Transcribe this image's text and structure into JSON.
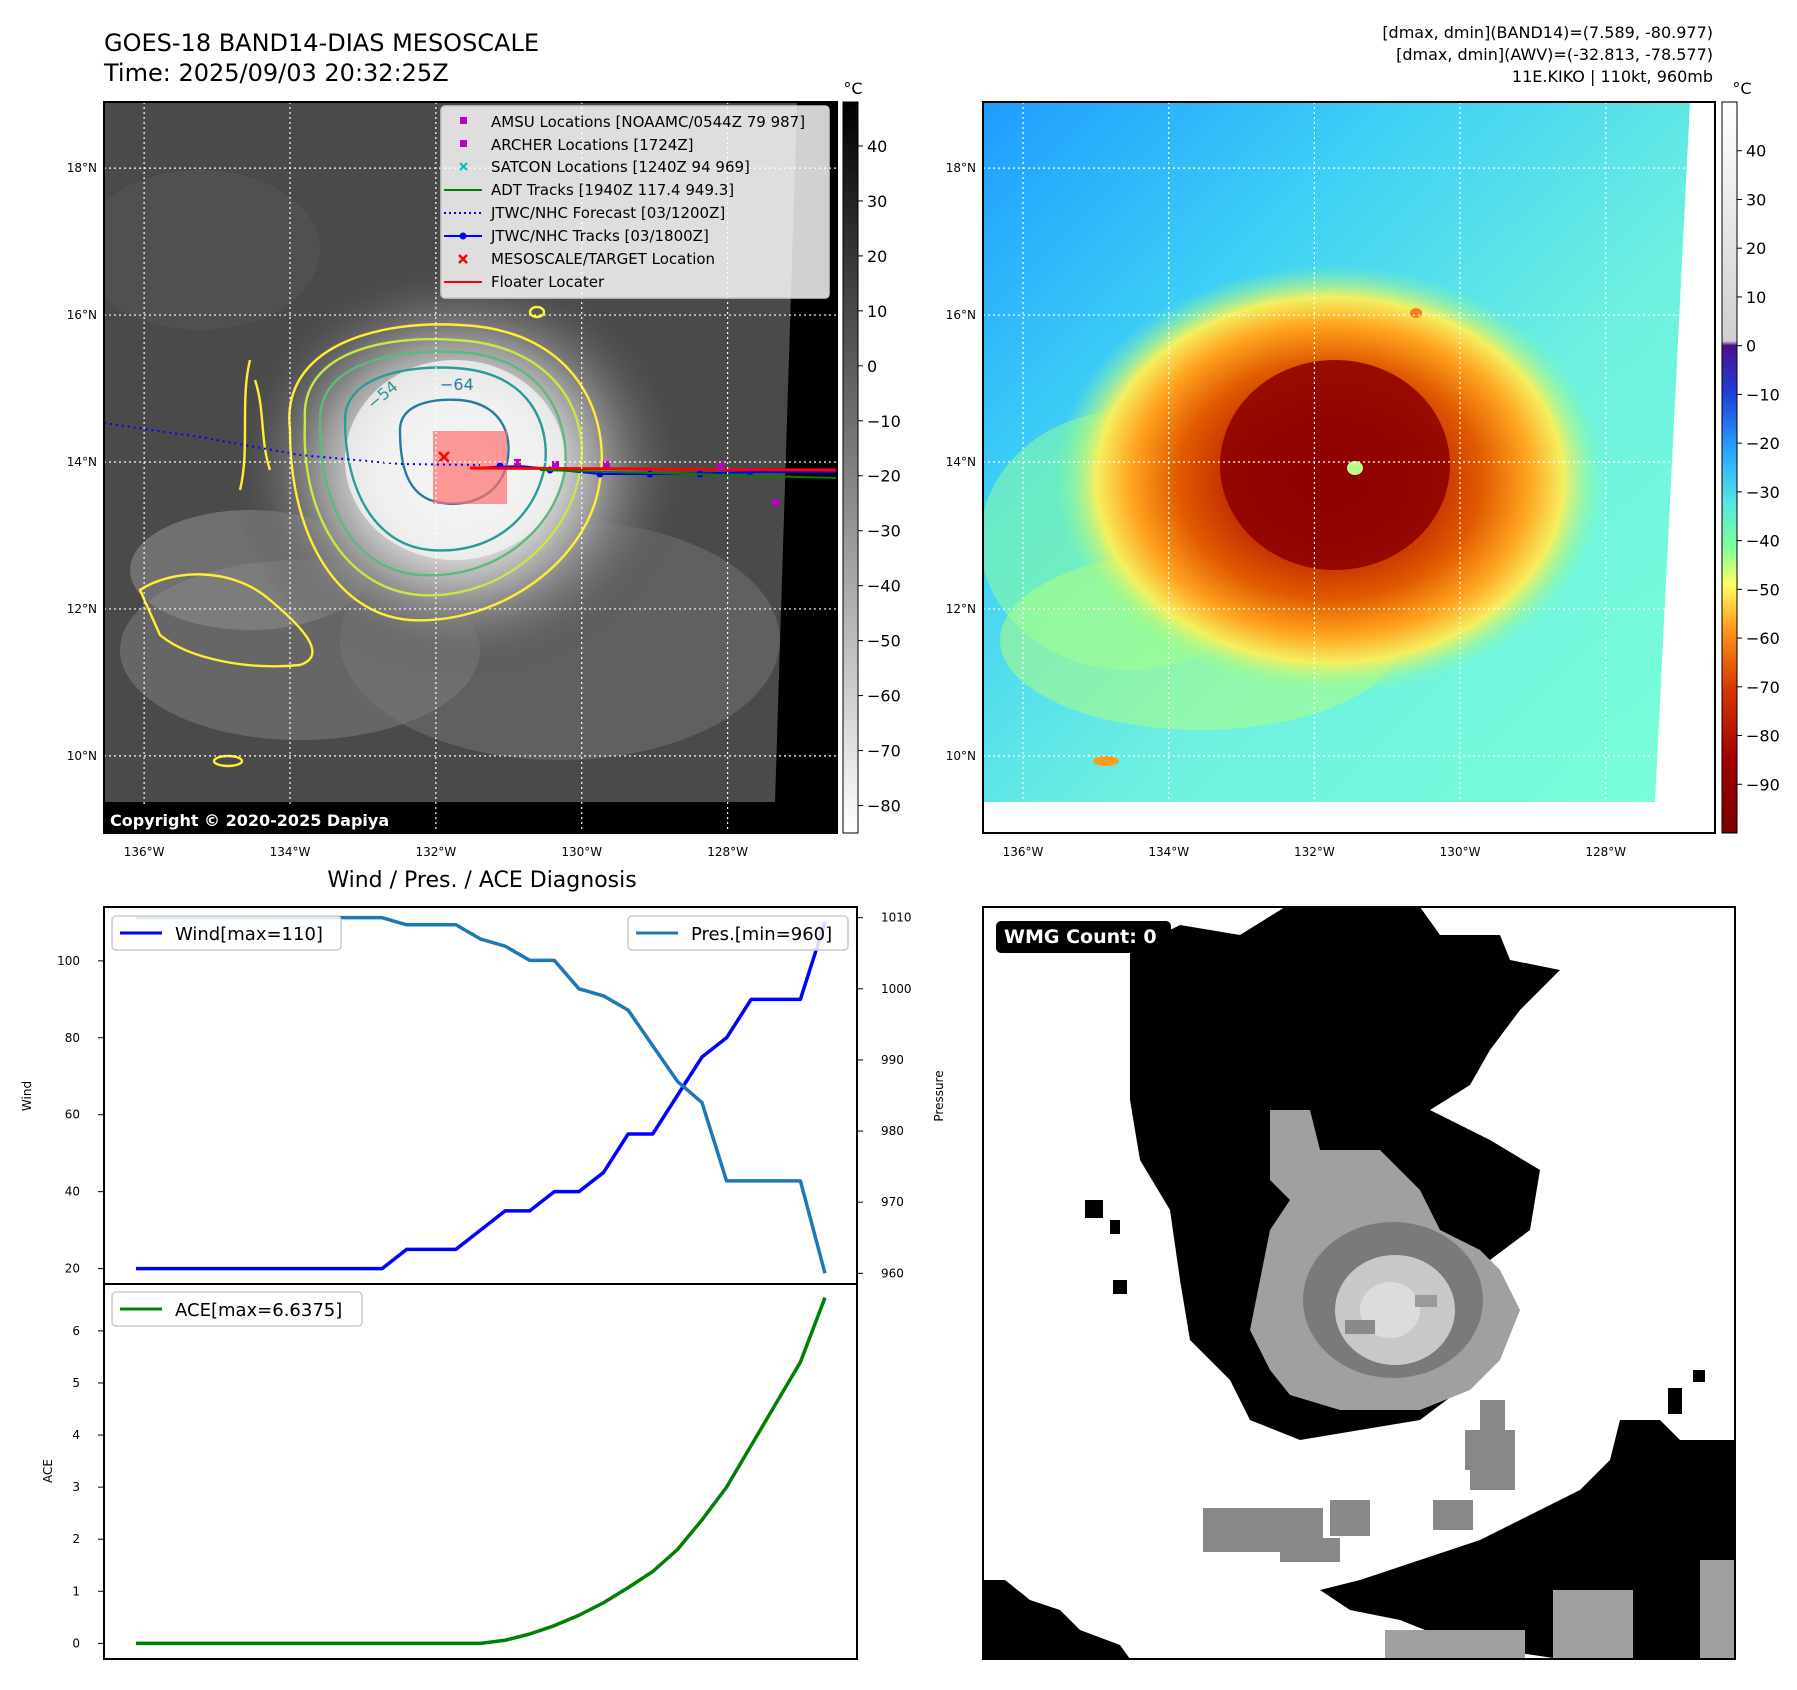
{
  "header": {
    "title_line1": "GOES-18 BAND14-DIAS MESOSCALE",
    "title_line2": "Time: 2025/09/03 20:32:25Z",
    "stats_line1": "[dmax, dmin](BAND14)=(7.589, -80.977)",
    "stats_line2": "[dmax, dmin](AWV)=(-32.813, -78.577)",
    "stats_line3": "11E.KIKO | 110kt, 960mb"
  },
  "map_ir": {
    "lon_ticks": [
      "136°W",
      "134°W",
      "132°W",
      "130°W",
      "128°W"
    ],
    "lat_ticks": [
      "18°N",
      "16°N",
      "14°N",
      "12°N",
      "10°N"
    ],
    "lon_tick_values": [
      -136,
      -134,
      -132,
      -130,
      -128
    ],
    "lat_tick_values": [
      18,
      16,
      14,
      12,
      10
    ],
    "lon_range": [
      -136.55,
      -126.5
    ],
    "lat_range": [
      8.95,
      18.9
    ],
    "contour_labels": [
      "−54",
      "−64"
    ],
    "copyright": "Copyright © 2020-2025 Dapiya",
    "legend": [
      {
        "label": "AMSU Locations [NOAAMC/0544Z 79 987]",
        "color": "#bf00bf",
        "marker": "square"
      },
      {
        "label": "ARCHER Locations [1724Z]",
        "color": "#bf00bf",
        "marker": "square"
      },
      {
        "label": "SATCON Locations [1240Z 94 969]",
        "color": "#00bfbf",
        "marker": "x"
      },
      {
        "label": "ADT Tracks [1940Z 117.4 949.3]",
        "color": "#008000",
        "marker": "line"
      },
      {
        "label": "JTWC/NHC Forecast [03/1200Z]",
        "color": "#0000ff",
        "marker": "dotted"
      },
      {
        "label": "JTWC/NHC Tracks [03/1800Z]",
        "color": "#0000ff",
        "marker": "line-dot"
      },
      {
        "label": "MESOSCALE/TARGET Location",
        "color": "#ff0000",
        "marker": "x"
      },
      {
        "label": "Floater Locater",
        "color": "#ff0000",
        "marker": "line"
      }
    ],
    "colorbar": {
      "unit": "°C",
      "ticks": [
        "40",
        "30",
        "20",
        "10",
        "0",
        "−10",
        "−20",
        "−30",
        "−40",
        "−50",
        "−60",
        "−70",
        "−80"
      ],
      "tick_values": [
        40,
        30,
        20,
        10,
        0,
        -10,
        -20,
        -30,
        -40,
        -50,
        -60,
        -70,
        -80
      ],
      "range": [
        -85,
        48
      ]
    }
  },
  "map_awv": {
    "lon_ticks": [
      "136°W",
      "134°W",
      "132°W",
      "130°W",
      "128°W"
    ],
    "lat_ticks": [
      "18°N",
      "16°N",
      "14°N",
      "12°N",
      "10°N"
    ],
    "lon_tick_values": [
      -136,
      -134,
      -132,
      -130,
      -128
    ],
    "lat_tick_values": [
      18,
      16,
      14,
      12,
      10
    ],
    "lon_range": [
      -136.55,
      -126.5
    ],
    "lat_range": [
      8.95,
      18.9
    ],
    "colorbar": {
      "unit": "°C",
      "ticks": [
        "40",
        "30",
        "20",
        "10",
        "0",
        "−10",
        "−20",
        "−30",
        "−40",
        "−50",
        "−60",
        "−70",
        "−80",
        "−90"
      ],
      "tick_values": [
        40,
        30,
        20,
        10,
        0,
        -10,
        -20,
        -30,
        -40,
        -50,
        -60,
        -70,
        -80,
        -90
      ],
      "range": [
        -100,
        50
      ]
    }
  },
  "chart_data": [
    {
      "type": "line",
      "title": "Wind / Pres. / ACE Diagnosis",
      "ylabel": "Wind",
      "y2label": "Pressure",
      "ylim": [
        16,
        114
      ],
      "y2lim": [
        958.5,
        1011.5
      ],
      "yticks": [
        20,
        40,
        60,
        80,
        100
      ],
      "y2ticks": [
        960,
        970,
        980,
        990,
        1000,
        1010
      ],
      "x": [
        0,
        1,
        2,
        3,
        4,
        5,
        6,
        7,
        8,
        9,
        10,
        11,
        12,
        13,
        14,
        15,
        16,
        17,
        18,
        19,
        20,
        21,
        22,
        23,
        24,
        25,
        26,
        27,
        28
      ],
      "series": [
        {
          "name": "Wind[max=110]",
          "color": "#0000ff",
          "axis": "left",
          "values": [
            20,
            20,
            20,
            20,
            20,
            20,
            20,
            20,
            20,
            20,
            20,
            25,
            25,
            25,
            30,
            35,
            35,
            40,
            40,
            45,
            55,
            55,
            65,
            75,
            80,
            90,
            90,
            90,
            110
          ]
        },
        {
          "name": "Pres.[min=960]",
          "color": "#1f77b4",
          "axis": "right",
          "values": [
            1010,
            1010,
            1010,
            1010,
            1010,
            1010,
            1010,
            1010,
            1010,
            1010,
            1010,
            1009,
            1009,
            1009,
            1007,
            1006,
            1004,
            1004,
            1000,
            999,
            997,
            992,
            987,
            984,
            973,
            973,
            973,
            973,
            960
          ]
        }
      ]
    },
    {
      "type": "line",
      "ylabel": "ACE",
      "ylim": [
        -0.3,
        6.9
      ],
      "yticks": [
        0,
        1,
        2,
        3,
        4,
        5,
        6
      ],
      "x": [
        0,
        1,
        2,
        3,
        4,
        5,
        6,
        7,
        8,
        9,
        10,
        11,
        12,
        13,
        14,
        15,
        16,
        17,
        18,
        19,
        20,
        21,
        22,
        23,
        24,
        25,
        26,
        27,
        28
      ],
      "series": [
        {
          "name": "ACE[max=6.6375]",
          "color": "#008000",
          "values": [
            0,
            0,
            0,
            0,
            0,
            0,
            0,
            0,
            0,
            0,
            0,
            0,
            0,
            0,
            0,
            0.06,
            0.18,
            0.34,
            0.54,
            0.78,
            1.07,
            1.38,
            1.8,
            2.37,
            3.0,
            3.8,
            4.6,
            5.4,
            6.6375
          ]
        }
      ]
    }
  ],
  "wmg_panel": {
    "label": "WMG Count: 0"
  }
}
